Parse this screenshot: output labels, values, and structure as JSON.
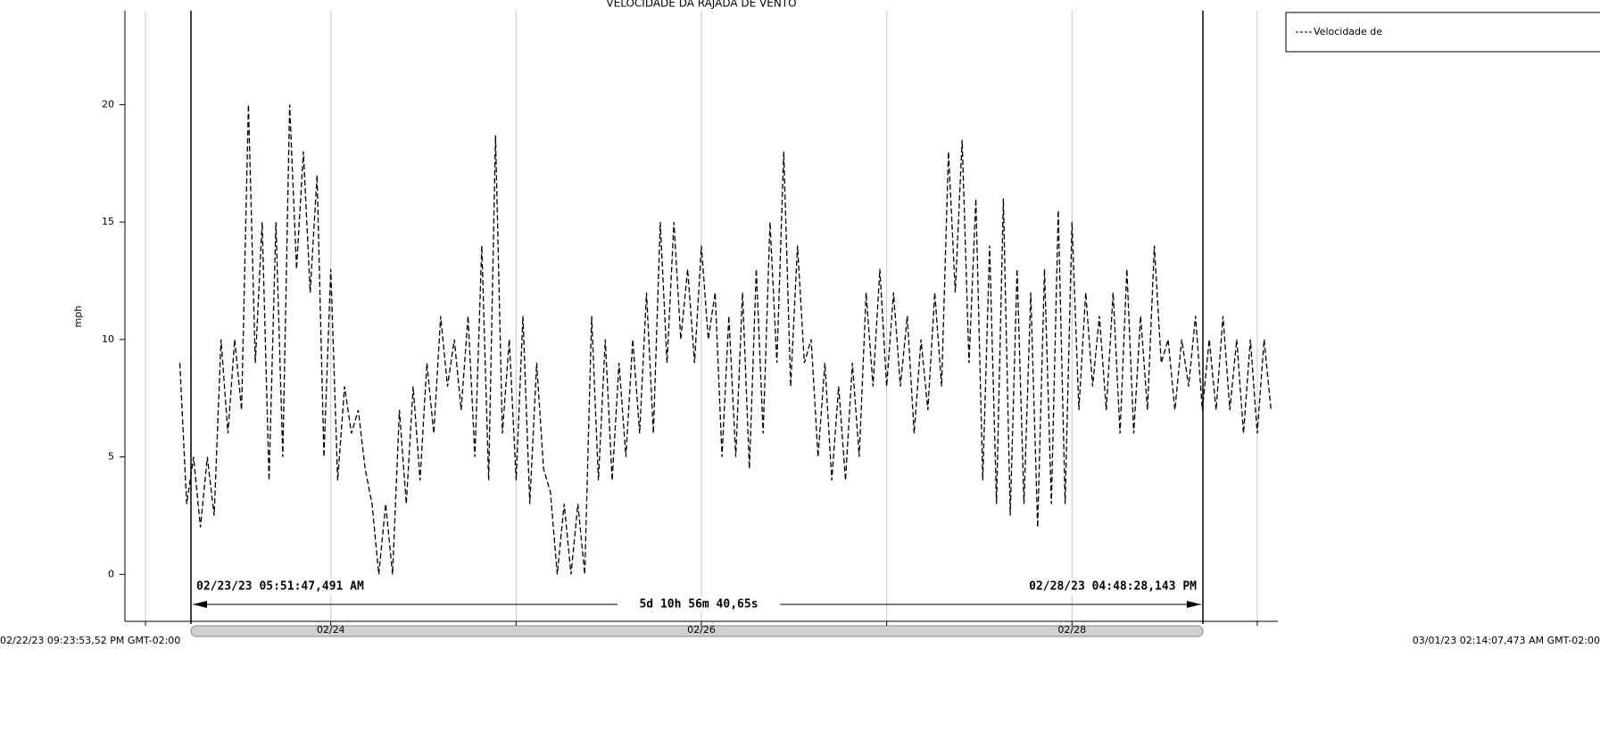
{
  "chart_data": {
    "type": "line",
    "title": "VELOCIDADE DA RAJADA DE VENTO",
    "y_label": "mph",
    "series": [
      {
        "name": "Velocidade de",
        "color": "#000000",
        "values": [
          9,
          3,
          5,
          2,
          5,
          2.5,
          10,
          6,
          10,
          7,
          20,
          9,
          15,
          4,
          15,
          5,
          20,
          13,
          18,
          12,
          17,
          5,
          13,
          4,
          8,
          6,
          7,
          4.5,
          3,
          0,
          3,
          0,
          7,
          3,
          8,
          4,
          9,
          6,
          11,
          8,
          10,
          7,
          11,
          5,
          14,
          4,
          18.7,
          6,
          10,
          4,
          11,
          3,
          9,
          4.5,
          3.5,
          0,
          3,
          0,
          3,
          0,
          11,
          4,
          10,
          4,
          9,
          5,
          10,
          6,
          12,
          6,
          15,
          9,
          15,
          10,
          13,
          9,
          14,
          10,
          12,
          5,
          11,
          5,
          12,
          4.5,
          13,
          6,
          15,
          9,
          18,
          8,
          14,
          9,
          10,
          5,
          9,
          4,
          8,
          4,
          9,
          5,
          12,
          8,
          13,
          8,
          12,
          8,
          11,
          6,
          10,
          7,
          12,
          8,
          18,
          12,
          18.5,
          9,
          16,
          4,
          14,
          3,
          16,
          2.5,
          13,
          3,
          12,
          2,
          13,
          3,
          15.5,
          3,
          15,
          7,
          12,
          8,
          11,
          7,
          12,
          6,
          13,
          6,
          11,
          7,
          14,
          9,
          10,
          7,
          10,
          8,
          11,
          7,
          10,
          7,
          11,
          7,
          10,
          6,
          10,
          6,
          10,
          7
        ]
      }
    ],
    "xlim": [
      -8,
      160
    ],
    "xticks": [
      {
        "value": 22,
        "label": "02/24"
      },
      {
        "value": 76,
        "label": "02/26"
      },
      {
        "value": 130,
        "label": "02/28"
      }
    ],
    "x_grid_minor": [
      -5,
      49,
      103,
      157
    ],
    "ylim": [
      -2,
      24
    ],
    "yticks": [
      0,
      5,
      10,
      15,
      20
    ],
    "grid": true,
    "dashed": true,
    "annotations": {
      "cursor_start": "02/23/23 05:51:47,491 AM",
      "cursor_end": "02/28/23 04:48:28,143 PM",
      "duration": "5d 10h 56m 40,65s",
      "range_start": "02/22/23 09:23:53,52 PM GMT-02:00",
      "range_end": "03/01/23 02:14:07,473 AM GMT-02:00"
    }
  }
}
